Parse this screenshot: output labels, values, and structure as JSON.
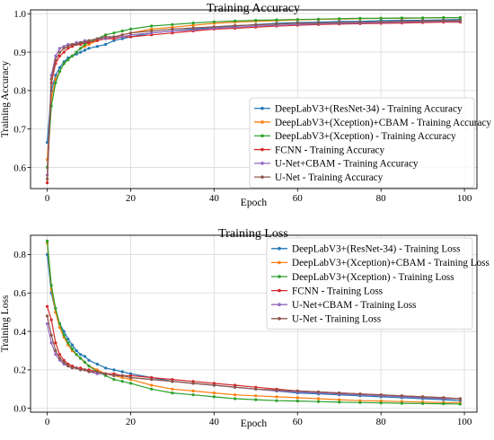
{
  "chart_data": [
    {
      "type": "line",
      "title": "Training Accuracy",
      "xlabel": "Epoch",
      "ylabel": "Training Accuracy",
      "xlim": [
        -4,
        103
      ],
      "ylim": [
        0.545,
        1.01
      ],
      "xticks": [
        0,
        20,
        40,
        60,
        80,
        100
      ],
      "yticks": [
        0.6,
        0.7,
        0.8,
        0.9,
        1.0
      ],
      "grid": true,
      "legend": "lower-right",
      "series": [
        {
          "name": "DeepLabV3+(ResNet-34) - Training Accuracy",
          "color": "#1f77b4",
          "x": [
            0,
            1,
            2,
            3,
            4,
            5,
            6,
            7,
            8,
            9,
            10,
            12,
            14,
            16,
            18,
            20,
            25,
            30,
            35,
            40,
            45,
            50,
            55,
            60,
            65,
            70,
            75,
            80,
            85,
            90,
            95,
            99
          ],
          "y": [
            0.665,
            0.8,
            0.84,
            0.86,
            0.875,
            0.885,
            0.89,
            0.895,
            0.9,
            0.905,
            0.91,
            0.915,
            0.92,
            0.93,
            0.935,
            0.94,
            0.95,
            0.955,
            0.96,
            0.965,
            0.968,
            0.972,
            0.975,
            0.977,
            0.978,
            0.98,
            0.98,
            0.982,
            0.983,
            0.983,
            0.984,
            0.985
          ]
        },
        {
          "name": "DeepLabV3+(Xception)+CBAM - Training Accuracy",
          "color": "#ff7f0e",
          "x": [
            0,
            1,
            2,
            3,
            4,
            5,
            6,
            7,
            8,
            9,
            10,
            12,
            14,
            16,
            18,
            20,
            25,
            30,
            35,
            40,
            45,
            50,
            55,
            60,
            65,
            70,
            75,
            80,
            85,
            90,
            95,
            99
          ],
          "y": [
            0.62,
            0.78,
            0.83,
            0.85,
            0.87,
            0.88,
            0.89,
            0.9,
            0.91,
            0.915,
            0.92,
            0.93,
            0.935,
            0.94,
            0.945,
            0.95,
            0.96,
            0.965,
            0.97,
            0.975,
            0.978,
            0.98,
            0.982,
            0.984,
            0.985,
            0.986,
            0.987,
            0.988,
            0.988,
            0.989,
            0.99,
            0.99
          ]
        },
        {
          "name": "DeepLabV3+(Xception) - Training Accuracy",
          "color": "#2ca02c",
          "x": [
            0,
            1,
            2,
            3,
            4,
            5,
            6,
            7,
            8,
            9,
            10,
            12,
            14,
            16,
            18,
            20,
            25,
            30,
            35,
            40,
            45,
            50,
            55,
            60,
            65,
            70,
            75,
            80,
            85,
            90,
            95,
            99
          ],
          "y": [
            0.6,
            0.76,
            0.82,
            0.85,
            0.87,
            0.88,
            0.89,
            0.9,
            0.91,
            0.92,
            0.925,
            0.935,
            0.945,
            0.95,
            0.955,
            0.96,
            0.968,
            0.972,
            0.976,
            0.979,
            0.981,
            0.983,
            0.984,
            0.985,
            0.986,
            0.987,
            0.988,
            0.988,
            0.989,
            0.989,
            0.99,
            0.99
          ]
        },
        {
          "name": "FCNN - Training Accuracy",
          "color": "#d62728",
          "x": [
            0,
            1,
            2,
            3,
            4,
            5,
            6,
            7,
            8,
            9,
            10,
            12,
            14,
            16,
            18,
            20,
            25,
            30,
            35,
            40,
            45,
            50,
            55,
            60,
            65,
            70,
            75,
            80,
            85,
            90,
            95,
            99
          ],
          "y": [
            0.56,
            0.82,
            0.87,
            0.89,
            0.9,
            0.91,
            0.915,
            0.92,
            0.92,
            0.925,
            0.925,
            0.93,
            0.935,
            0.935,
            0.94,
            0.94,
            0.945,
            0.95,
            0.955,
            0.96,
            0.962,
            0.965,
            0.968,
            0.97,
            0.972,
            0.973,
            0.974,
            0.975,
            0.976,
            0.977,
            0.978,
            0.978
          ]
        },
        {
          "name": "U-Net+CBAM - Training Accuracy",
          "color": "#9467bd",
          "x": [
            0,
            1,
            2,
            3,
            4,
            5,
            6,
            7,
            8,
            9,
            10,
            12,
            14,
            16,
            18,
            20,
            25,
            30,
            35,
            40,
            45,
            50,
            55,
            60,
            65,
            70,
            75,
            80,
            85,
            90,
            95,
            99
          ],
          "y": [
            0.58,
            0.84,
            0.89,
            0.91,
            0.915,
            0.92,
            0.92,
            0.925,
            0.925,
            0.93,
            0.93,
            0.935,
            0.935,
            0.94,
            0.94,
            0.945,
            0.95,
            0.955,
            0.958,
            0.962,
            0.965,
            0.968,
            0.97,
            0.972,
            0.974,
            0.975,
            0.976,
            0.977,
            0.978,
            0.979,
            0.98,
            0.98
          ]
        },
        {
          "name": "U-Net - Training Accuracy",
          "color": "#8c564b",
          "x": [
            0,
            1,
            2,
            3,
            4,
            5,
            6,
            7,
            8,
            9,
            10,
            12,
            14,
            16,
            18,
            20,
            25,
            30,
            35,
            40,
            45,
            50,
            55,
            60,
            65,
            70,
            75,
            80,
            85,
            90,
            95,
            99
          ],
          "y": [
            0.57,
            0.83,
            0.88,
            0.9,
            0.91,
            0.915,
            0.92,
            0.92,
            0.925,
            0.925,
            0.93,
            0.935,
            0.94,
            0.94,
            0.945,
            0.95,
            0.955,
            0.96,
            0.963,
            0.966,
            0.969,
            0.971,
            0.973,
            0.975,
            0.976,
            0.977,
            0.978,
            0.979,
            0.98,
            0.981,
            0.982,
            0.982
          ]
        }
      ]
    },
    {
      "type": "line",
      "title": "Training Loss",
      "xlabel": "Epoch",
      "ylabel": "Training Loss",
      "xlim": [
        -4,
        103
      ],
      "ylim": [
        -0.02,
        0.9
      ],
      "xticks": [
        0,
        20,
        40,
        60,
        80,
        100
      ],
      "yticks": [
        0.0,
        0.2,
        0.4,
        0.6,
        0.8
      ],
      "grid": true,
      "legend": "top-right",
      "series": [
        {
          "name": "DeepLabV3+(ResNet-34) - Training Loss",
          "color": "#1f77b4",
          "x": [
            0,
            1,
            2,
            3,
            4,
            5,
            6,
            7,
            8,
            9,
            10,
            12,
            14,
            16,
            18,
            20,
            25,
            30,
            35,
            40,
            45,
            50,
            55,
            60,
            65,
            70,
            75,
            80,
            85,
            90,
            95,
            99
          ],
          "y": [
            0.8,
            0.6,
            0.5,
            0.44,
            0.4,
            0.36,
            0.33,
            0.3,
            0.28,
            0.27,
            0.25,
            0.23,
            0.21,
            0.2,
            0.19,
            0.18,
            0.16,
            0.14,
            0.13,
            0.12,
            0.11,
            0.1,
            0.09,
            0.08,
            0.075,
            0.07,
            0.065,
            0.06,
            0.055,
            0.05,
            0.045,
            0.04
          ]
        },
        {
          "name": "DeepLabV3+(Xception)+CBAM - Training Loss",
          "color": "#ff7f0e",
          "x": [
            0,
            1,
            2,
            3,
            4,
            5,
            6,
            7,
            8,
            9,
            10,
            12,
            14,
            16,
            18,
            20,
            25,
            30,
            35,
            40,
            45,
            50,
            55,
            60,
            65,
            70,
            75,
            80,
            85,
            90,
            95,
            99
          ],
          "y": [
            0.86,
            0.62,
            0.5,
            0.42,
            0.37,
            0.33,
            0.3,
            0.28,
            0.26,
            0.24,
            0.22,
            0.2,
            0.18,
            0.17,
            0.16,
            0.15,
            0.12,
            0.1,
            0.09,
            0.08,
            0.07,
            0.065,
            0.06,
            0.055,
            0.05,
            0.045,
            0.04,
            0.038,
            0.035,
            0.033,
            0.03,
            0.03
          ]
        },
        {
          "name": "DeepLabV3+(Xception) - Training Loss",
          "color": "#2ca02c",
          "x": [
            0,
            1,
            2,
            3,
            4,
            5,
            6,
            7,
            8,
            9,
            10,
            12,
            14,
            16,
            18,
            20,
            25,
            30,
            35,
            40,
            45,
            50,
            55,
            60,
            65,
            70,
            75,
            80,
            85,
            90,
            95,
            99
          ],
          "y": [
            0.87,
            0.64,
            0.52,
            0.44,
            0.38,
            0.34,
            0.31,
            0.28,
            0.26,
            0.24,
            0.22,
            0.19,
            0.17,
            0.15,
            0.14,
            0.13,
            0.1,
            0.08,
            0.07,
            0.06,
            0.05,
            0.045,
            0.04,
            0.038,
            0.035,
            0.032,
            0.03,
            0.028,
            0.026,
            0.025,
            0.024,
            0.022
          ]
        },
        {
          "name": "FCNN - Training Loss",
          "color": "#d62728",
          "x": [
            0,
            1,
            2,
            3,
            4,
            5,
            6,
            7,
            8,
            9,
            10,
            12,
            14,
            16,
            18,
            20,
            25,
            30,
            35,
            40,
            45,
            50,
            55,
            60,
            65,
            70,
            75,
            80,
            85,
            90,
            95,
            99
          ],
          "y": [
            0.53,
            0.46,
            0.34,
            0.28,
            0.25,
            0.23,
            0.22,
            0.21,
            0.21,
            0.2,
            0.2,
            0.19,
            0.18,
            0.18,
            0.17,
            0.17,
            0.16,
            0.15,
            0.14,
            0.13,
            0.12,
            0.11,
            0.1,
            0.09,
            0.085,
            0.08,
            0.075,
            0.07,
            0.065,
            0.06,
            0.055,
            0.05
          ]
        },
        {
          "name": "U-Net+CBAM - Training Loss",
          "color": "#9467bd",
          "x": [
            0,
            1,
            2,
            3,
            4,
            5,
            6,
            7,
            8,
            9,
            10,
            12,
            14,
            16,
            18,
            20,
            25,
            30,
            35,
            40,
            45,
            50,
            55,
            60,
            65,
            70,
            75,
            80,
            85,
            90,
            95,
            99
          ],
          "y": [
            0.44,
            0.34,
            0.28,
            0.25,
            0.23,
            0.22,
            0.21,
            0.21,
            0.2,
            0.2,
            0.19,
            0.18,
            0.18,
            0.17,
            0.17,
            0.16,
            0.15,
            0.14,
            0.13,
            0.12,
            0.11,
            0.1,
            0.09,
            0.085,
            0.08,
            0.075,
            0.07,
            0.065,
            0.06,
            0.055,
            0.05,
            0.05
          ]
        },
        {
          "name": "U-Net - Training Loss",
          "color": "#8c564b",
          "x": [
            0,
            1,
            2,
            3,
            4,
            5,
            6,
            7,
            8,
            9,
            10,
            12,
            14,
            16,
            18,
            20,
            25,
            30,
            35,
            40,
            45,
            50,
            55,
            60,
            65,
            70,
            75,
            80,
            85,
            90,
            95,
            99
          ],
          "y": [
            0.48,
            0.38,
            0.3,
            0.26,
            0.24,
            0.22,
            0.21,
            0.21,
            0.2,
            0.2,
            0.19,
            0.19,
            0.18,
            0.17,
            0.17,
            0.16,
            0.15,
            0.14,
            0.13,
            0.12,
            0.11,
            0.1,
            0.095,
            0.09,
            0.085,
            0.08,
            0.075,
            0.07,
            0.065,
            0.06,
            0.055,
            0.05
          ]
        }
      ]
    }
  ]
}
